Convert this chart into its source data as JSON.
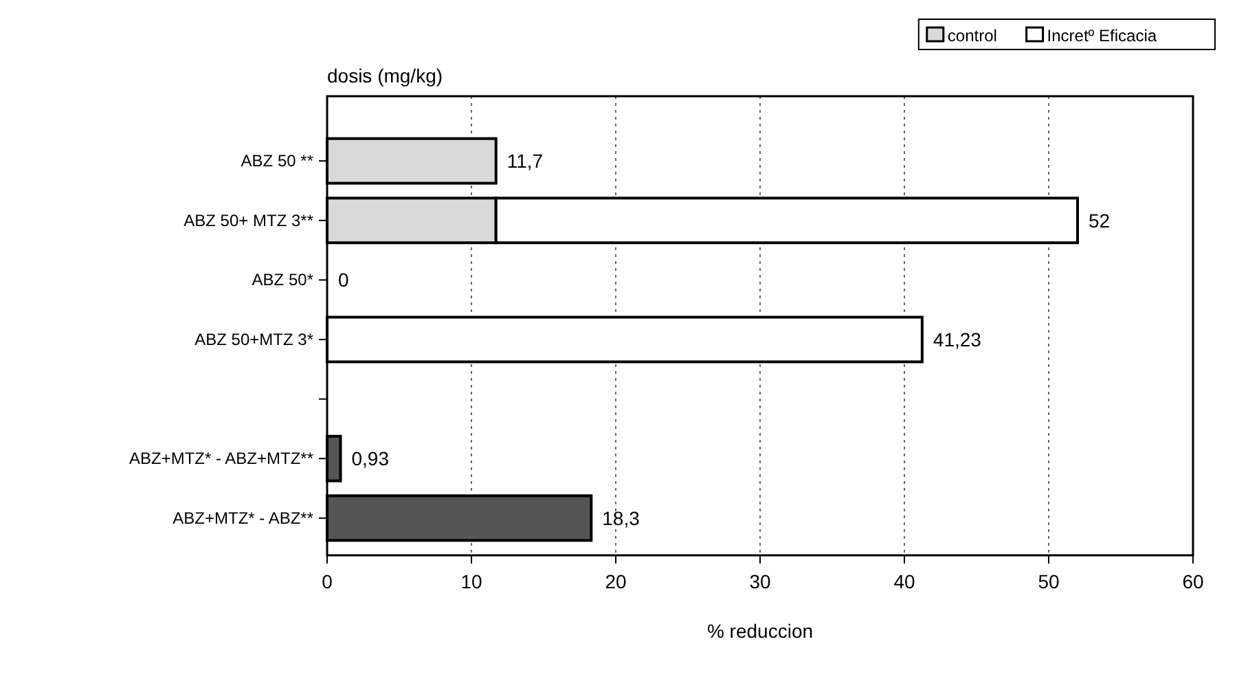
{
  "chart_data": {
    "type": "bar",
    "orientation": "horizontal",
    "stacked": true,
    "ylabel": "dosis (mg/kg)",
    "xlabel": "% reduccion",
    "categories": [
      "ABZ 50 **",
      "ABZ 50+ MTZ 3**",
      "ABZ 50*",
      "ABZ 50+MTZ 3*",
      null,
      "ABZ+MTZ* - ABZ+MTZ**",
      "ABZ+MTZ* - ABZ**"
    ],
    "series": [
      {
        "name": "control",
        "color": "#d9d9d9",
        "values": [
          11.7,
          11.7,
          0,
          0,
          null,
          null,
          null
        ]
      },
      {
        "name": "Incretº Eficacia",
        "color": "#ffffff",
        "values": [
          0,
          40.3,
          0,
          41.23,
          null,
          null,
          null
        ]
      },
      {
        "color": "#555555",
        "values": [
          null,
          null,
          null,
          null,
          null,
          0.93,
          18.3
        ]
      }
    ],
    "totals": [
      "11,7",
      "52",
      "0",
      "41,23",
      null,
      "0,93",
      "18,3"
    ],
    "xlim": [
      0,
      60
    ],
    "xticks": [
      0,
      10,
      20,
      30,
      40,
      50,
      60
    ],
    "grid": "x",
    "legend": "top right"
  }
}
